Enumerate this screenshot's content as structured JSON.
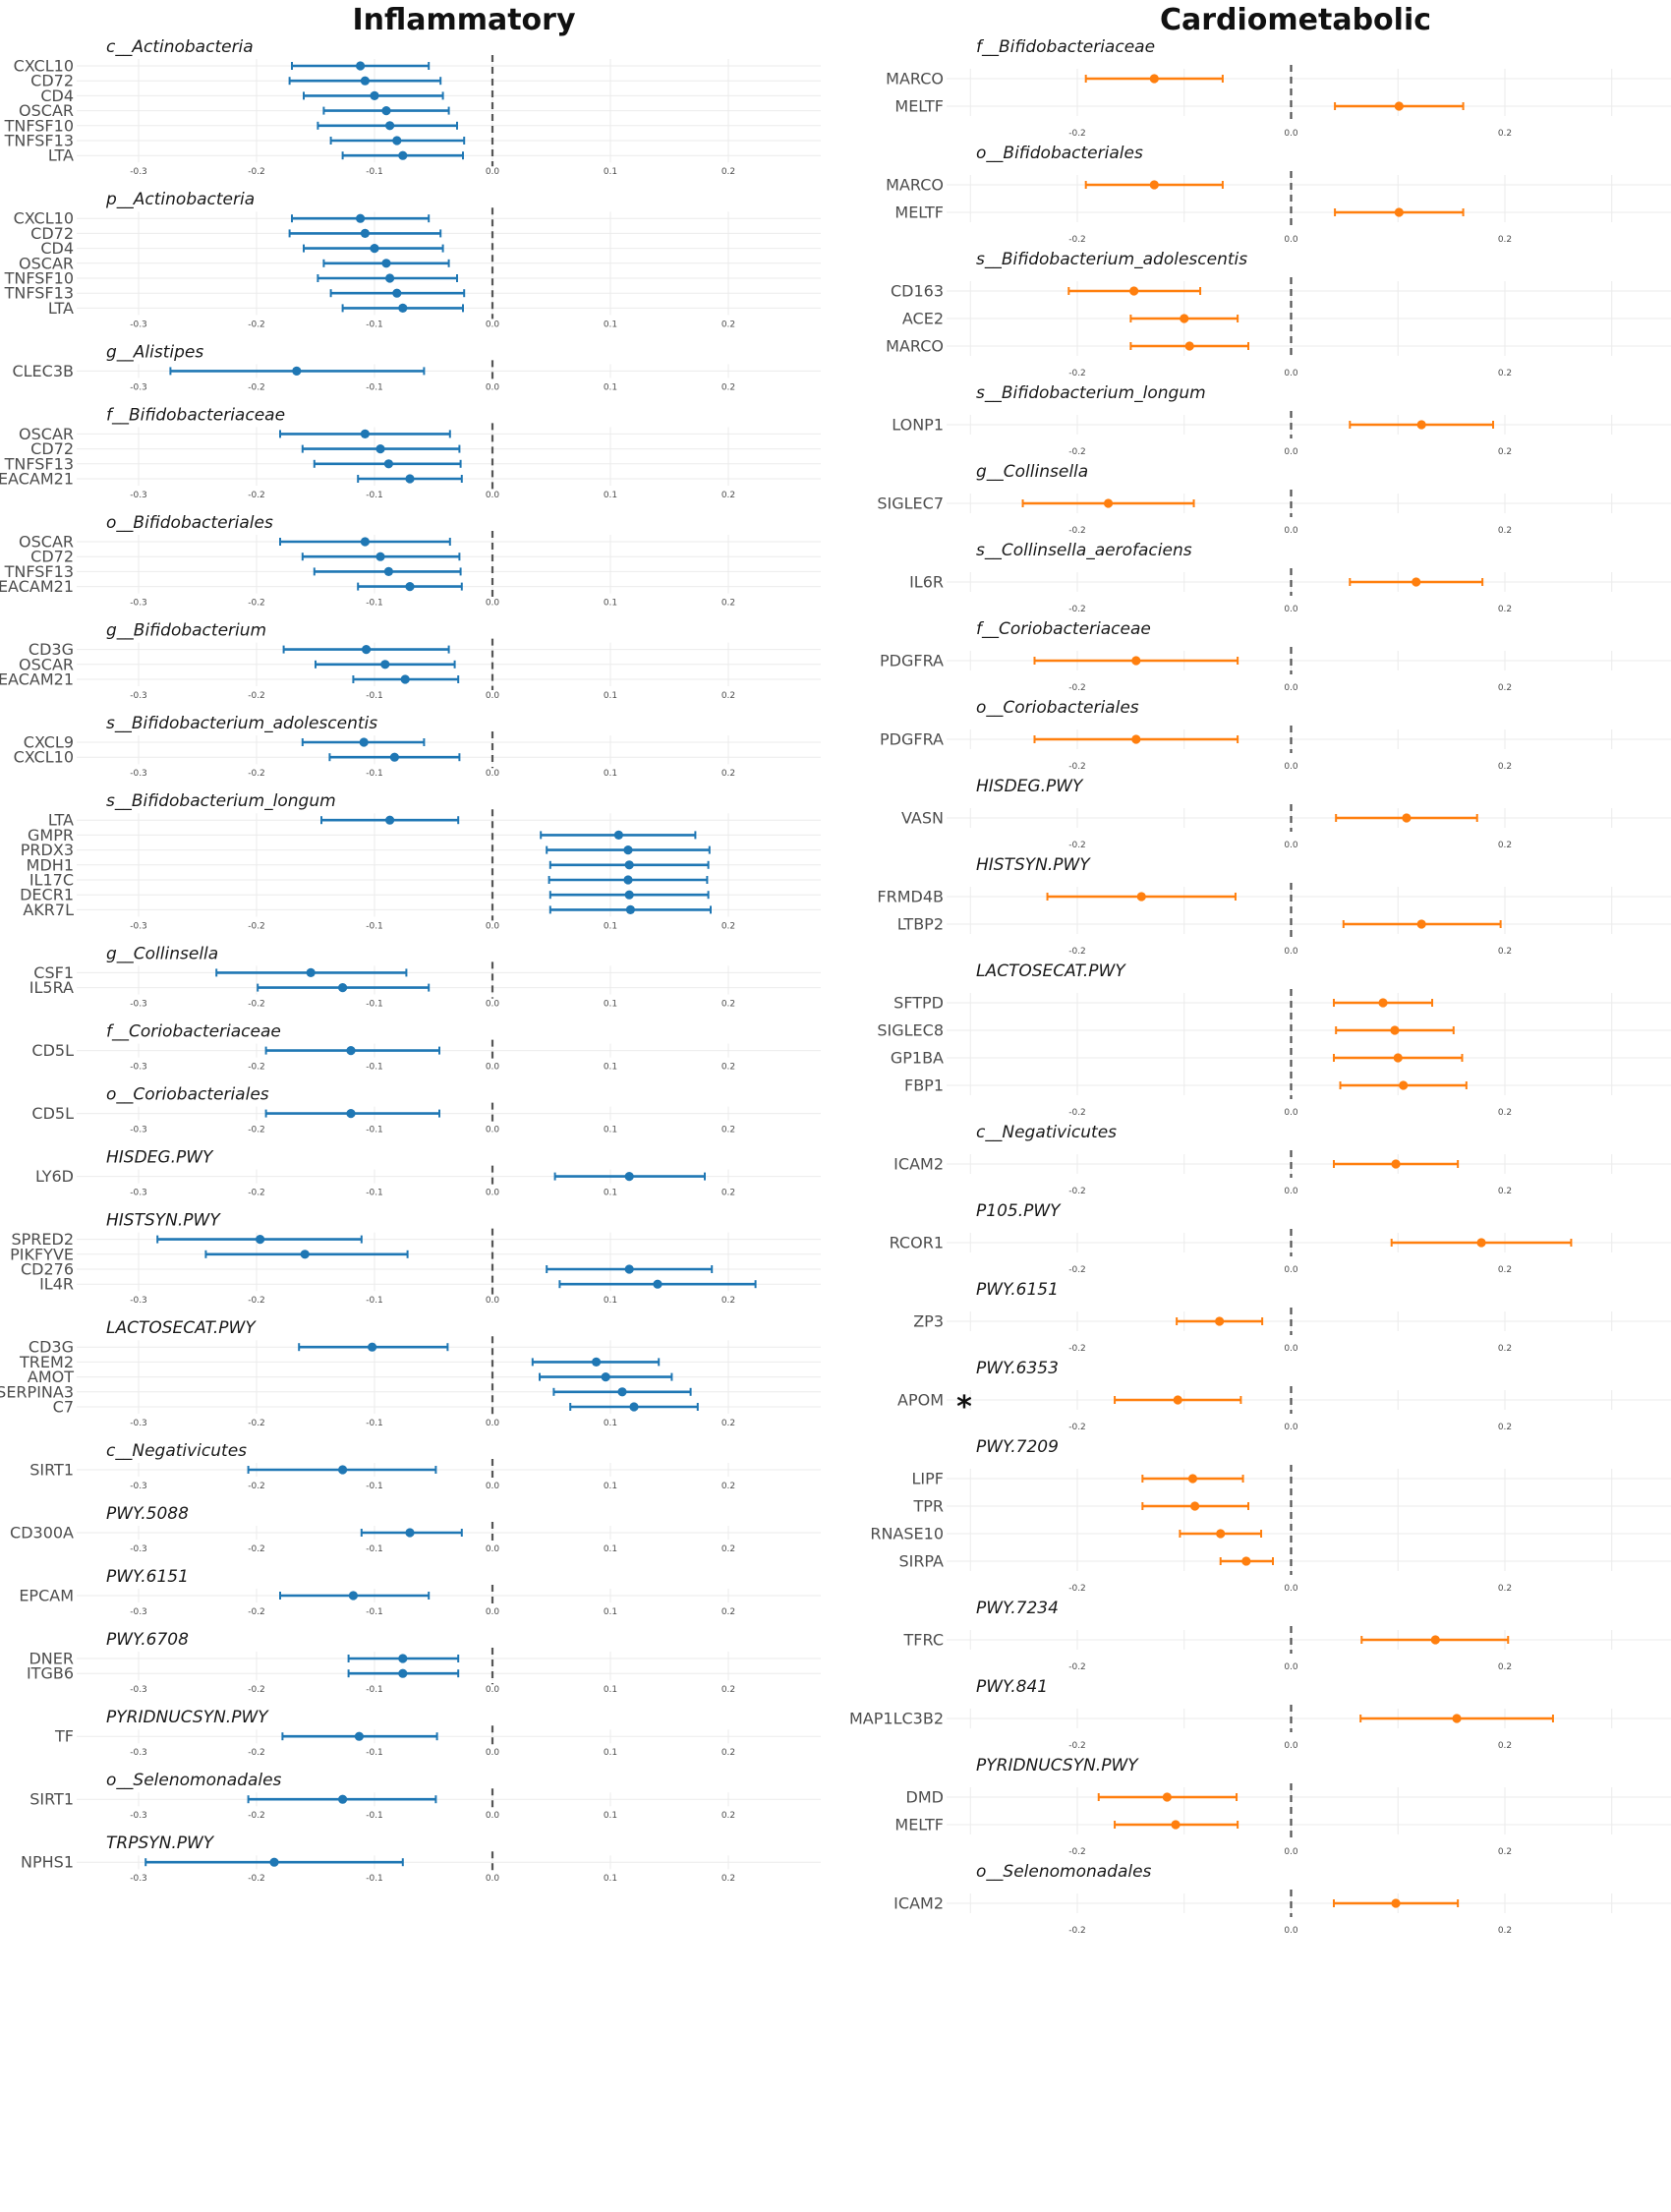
{
  "columns": [
    {
      "title": "Inflammatory",
      "color": "#1f77b4"
    },
    {
      "title": "Cardiometabolic",
      "color": "#ff7f0e"
    }
  ],
  "chart_data": [
    {
      "type": "forest",
      "column": "Inflammatory",
      "color": "#1f77b4",
      "xlim": [
        -0.3,
        0.27
      ],
      "xticks": [
        -0.3,
        -0.2,
        -0.1,
        0.0,
        0.1,
        0.2
      ],
      "xtick_labels": [
        "-0.3",
        "-0.2",
        "-0.1",
        "0.0",
        "0.1",
        "0.2"
      ],
      "reference_line": 0,
      "panels": [
        {
          "title": "c__Actinobacteria",
          "rows": [
            {
              "label": "CXCL10",
              "est": -0.112,
              "lo": -0.17,
              "hi": -0.054
            },
            {
              "label": "CD72",
              "est": -0.108,
              "lo": -0.172,
              "hi": -0.044
            },
            {
              "label": "CD4",
              "est": -0.1,
              "lo": -0.16,
              "hi": -0.042
            },
            {
              "label": "OSCAR",
              "est": -0.09,
              "lo": -0.143,
              "hi": -0.037
            },
            {
              "label": "TNFSF10",
              "est": -0.087,
              "lo": -0.148,
              "hi": -0.03
            },
            {
              "label": "TNFSF13",
              "est": -0.081,
              "lo": -0.137,
              "hi": -0.024
            },
            {
              "label": "LTA",
              "est": -0.076,
              "lo": -0.127,
              "hi": -0.025
            }
          ]
        },
        {
          "title": "p__Actinobacteria",
          "rows": [
            {
              "label": "CXCL10",
              "est": -0.112,
              "lo": -0.17,
              "hi": -0.054
            },
            {
              "label": "CD72",
              "est": -0.108,
              "lo": -0.172,
              "hi": -0.044
            },
            {
              "label": "CD4",
              "est": -0.1,
              "lo": -0.16,
              "hi": -0.042
            },
            {
              "label": "OSCAR",
              "est": -0.09,
              "lo": -0.143,
              "hi": -0.037
            },
            {
              "label": "TNFSF10",
              "est": -0.087,
              "lo": -0.148,
              "hi": -0.03
            },
            {
              "label": "TNFSF13",
              "est": -0.081,
              "lo": -0.137,
              "hi": -0.024
            },
            {
              "label": "LTA",
              "est": -0.076,
              "lo": -0.127,
              "hi": -0.025
            }
          ]
        },
        {
          "title": "g__Alistipes",
          "rows": [
            {
              "label": "CLEC3B",
              "est": -0.166,
              "lo": -0.273,
              "hi": -0.058
            }
          ]
        },
        {
          "title": "f__Bifidobacteriaceae",
          "rows": [
            {
              "label": "OSCAR",
              "est": -0.108,
              "lo": -0.18,
              "hi": -0.036
            },
            {
              "label": "CD72",
              "est": -0.095,
              "lo": -0.161,
              "hi": -0.028
            },
            {
              "label": "TNFSF13",
              "est": -0.088,
              "lo": -0.151,
              "hi": -0.027
            },
            {
              "label": "CEACAM21",
              "est": -0.07,
              "lo": -0.114,
              "hi": -0.026
            }
          ]
        },
        {
          "title": "o__Bifidobacteriales",
          "rows": [
            {
              "label": "OSCAR",
              "est": -0.108,
              "lo": -0.18,
              "hi": -0.036
            },
            {
              "label": "CD72",
              "est": -0.095,
              "lo": -0.161,
              "hi": -0.028
            },
            {
              "label": "TNFSF13",
              "est": -0.088,
              "lo": -0.151,
              "hi": -0.027
            },
            {
              "label": "CEACAM21",
              "est": -0.07,
              "lo": -0.114,
              "hi": -0.026
            }
          ]
        },
        {
          "title": "g__Bifidobacterium",
          "rows": [
            {
              "label": "CD3G",
              "est": -0.107,
              "lo": -0.177,
              "hi": -0.037
            },
            {
              "label": "OSCAR",
              "est": -0.091,
              "lo": -0.15,
              "hi": -0.032
            },
            {
              "label": "CEACAM21",
              "est": -0.074,
              "lo": -0.118,
              "hi": -0.029
            }
          ]
        },
        {
          "title": "s__Bifidobacterium_adolescentis",
          "rows": [
            {
              "label": "CXCL9",
              "est": -0.109,
              "lo": -0.161,
              "hi": -0.058
            },
            {
              "label": "CXCL10",
              "est": -0.083,
              "lo": -0.138,
              "hi": -0.028
            }
          ]
        },
        {
          "title": "s__Bifidobacterium_longum",
          "rows": [
            {
              "label": "LTA",
              "est": -0.087,
              "lo": -0.145,
              "hi": -0.029
            },
            {
              "label": "GMPR",
              "est": 0.107,
              "lo": 0.041,
              "hi": 0.172
            },
            {
              "label": "PRDX3",
              "est": 0.115,
              "lo": 0.046,
              "hi": 0.184
            },
            {
              "label": "MDH1",
              "est": 0.116,
              "lo": 0.049,
              "hi": 0.183
            },
            {
              "label": "IL17C",
              "est": 0.115,
              "lo": 0.048,
              "hi": 0.182
            },
            {
              "label": "DECR1",
              "est": 0.116,
              "lo": 0.049,
              "hi": 0.183
            },
            {
              "label": "AKR7L",
              "est": 0.117,
              "lo": 0.049,
              "hi": 0.185
            }
          ]
        },
        {
          "title": "g__Collinsella",
          "rows": [
            {
              "label": "CSF1",
              "est": -0.154,
              "lo": -0.234,
              "hi": -0.073
            },
            {
              "label": "IL5RA",
              "est": -0.127,
              "lo": -0.199,
              "hi": -0.054
            }
          ]
        },
        {
          "title": "f__Coriobacteriaceae",
          "rows": [
            {
              "label": "CD5L",
              "est": -0.12,
              "lo": -0.192,
              "hi": -0.045
            }
          ]
        },
        {
          "title": "o__Coriobacteriales",
          "rows": [
            {
              "label": "CD5L",
              "est": -0.12,
              "lo": -0.192,
              "hi": -0.045
            }
          ]
        },
        {
          "title": "HISDEG.PWY",
          "rows": [
            {
              "label": "LY6D",
              "est": 0.116,
              "lo": 0.053,
              "hi": 0.18
            }
          ]
        },
        {
          "title": "HISTSYN.PWY",
          "rows": [
            {
              "label": "SPRED2",
              "est": -0.197,
              "lo": -0.284,
              "hi": -0.111
            },
            {
              "label": "PIKFYVE",
              "est": -0.159,
              "lo": -0.243,
              "hi": -0.072
            },
            {
              "label": "CD276",
              "est": 0.116,
              "lo": 0.046,
              "hi": 0.186
            },
            {
              "label": "IL4R",
              "est": 0.14,
              "lo": 0.057,
              "hi": 0.223
            }
          ]
        },
        {
          "title": "LACTOSECAT.PWY",
          "rows": [
            {
              "label": "CD3G",
              "est": -0.102,
              "lo": -0.164,
              "hi": -0.038
            },
            {
              "label": "TREM2",
              "est": 0.088,
              "lo": 0.034,
              "hi": 0.141
            },
            {
              "label": "AMOT",
              "est": 0.096,
              "lo": 0.04,
              "hi": 0.152
            },
            {
              "label": "SERPINA3",
              "est": 0.11,
              "lo": 0.052,
              "hi": 0.168
            },
            {
              "label": "C7",
              "est": 0.12,
              "lo": 0.066,
              "hi": 0.174
            }
          ]
        },
        {
          "title": "c__Negativicutes",
          "rows": [
            {
              "label": "SIRT1",
              "est": -0.127,
              "lo": -0.207,
              "hi": -0.048
            }
          ]
        },
        {
          "title": "PWY.5088",
          "rows": [
            {
              "label": "CD300A",
              "est": -0.07,
              "lo": -0.111,
              "hi": -0.026
            }
          ]
        },
        {
          "title": "PWY.6151",
          "rows": [
            {
              "label": "EPCAM",
              "est": -0.118,
              "lo": -0.18,
              "hi": -0.054
            }
          ]
        },
        {
          "title": "PWY.6708",
          "rows": [
            {
              "label": "DNER",
              "est": -0.076,
              "lo": -0.122,
              "hi": -0.029
            },
            {
              "label": "ITGB6",
              "est": -0.076,
              "lo": -0.122,
              "hi": -0.029
            }
          ]
        },
        {
          "title": "PYRIDNUCSYN.PWY",
          "rows": [
            {
              "label": "TF",
              "est": -0.113,
              "lo": -0.178,
              "hi": -0.047
            }
          ]
        },
        {
          "title": "o__Selenomonadales",
          "rows": [
            {
              "label": "SIRT1",
              "est": -0.127,
              "lo": -0.207,
              "hi": -0.048
            }
          ]
        },
        {
          "title": "TRPSYN.PWY",
          "rows": [
            {
              "label": "NPHS1",
              "est": -0.185,
              "lo": -0.294,
              "hi": -0.076
            }
          ]
        }
      ]
    },
    {
      "type": "forest",
      "column": "Cardiometabolic",
      "color": "#ff7f0e",
      "xlim": [
        -0.33,
        0.31
      ],
      "xticks": [
        -0.2,
        0.0,
        0.2
      ],
      "xtick_labels": [
        "-0.2",
        "0.0",
        "0.2"
      ],
      "minor_gridlines": [
        -0.3,
        -0.1,
        0.1,
        0.3
      ],
      "reference_line": 0,
      "panels": [
        {
          "title": "f__Bifidobacteriaceae",
          "rows": [
            {
              "label": "MARCO",
              "est": -0.128,
              "lo": -0.192,
              "hi": -0.064
            },
            {
              "label": "MELTF",
              "est": 0.101,
              "lo": 0.041,
              "hi": 0.161
            }
          ]
        },
        {
          "title": "o__Bifidobacteriales",
          "rows": [
            {
              "label": "MARCO",
              "est": -0.128,
              "lo": -0.192,
              "hi": -0.064
            },
            {
              "label": "MELTF",
              "est": 0.101,
              "lo": 0.041,
              "hi": 0.161
            }
          ]
        },
        {
          "title": "s__Bifidobacterium_adolescentis",
          "rows": [
            {
              "label": "CD163",
              "est": -0.147,
              "lo": -0.208,
              "hi": -0.085
            },
            {
              "label": "ACE2",
              "est": -0.1,
              "lo": -0.15,
              "hi": -0.05
            },
            {
              "label": "MARCO",
              "est": -0.095,
              "lo": -0.15,
              "hi": -0.04
            }
          ]
        },
        {
          "title": "s__Bifidobacterium_longum",
          "rows": [
            {
              "label": "LONP1",
              "est": 0.122,
              "lo": 0.055,
              "hi": 0.189
            }
          ]
        },
        {
          "title": "g__Collinsella",
          "rows": [
            {
              "label": "SIGLEC7",
              "est": -0.171,
              "lo": -0.251,
              "hi": -0.091
            }
          ]
        },
        {
          "title": "s__Collinsella_aerofaciens",
          "rows": [
            {
              "label": "IL6R",
              "est": 0.117,
              "lo": 0.055,
              "hi": 0.179
            }
          ]
        },
        {
          "title": "f__Coriobacteriaceae",
          "rows": [
            {
              "label": "PDGFRA",
              "est": -0.145,
              "lo": -0.24,
              "hi": -0.05
            }
          ]
        },
        {
          "title": "o__Coriobacteriales",
          "rows": [
            {
              "label": "PDGFRA",
              "est": -0.145,
              "lo": -0.24,
              "hi": -0.05
            }
          ]
        },
        {
          "title": "HISDEG.PWY",
          "rows": [
            {
              "label": "VASN",
              "est": 0.108,
              "lo": 0.042,
              "hi": 0.174
            }
          ]
        },
        {
          "title": "HISTSYN.PWY",
          "rows": [
            {
              "label": "FRMD4B",
              "est": -0.14,
              "lo": -0.228,
              "hi": -0.052
            },
            {
              "label": "LTBP2",
              "est": 0.122,
              "lo": 0.049,
              "hi": 0.196
            }
          ]
        },
        {
          "title": "LACTOSECAT.PWY",
          "rows": [
            {
              "label": "SFTPD",
              "est": 0.086,
              "lo": 0.04,
              "hi": 0.132
            },
            {
              "label": "SIGLEC8",
              "est": 0.097,
              "lo": 0.042,
              "hi": 0.152
            },
            {
              "label": "GP1BA",
              "est": 0.1,
              "lo": 0.04,
              "hi": 0.16
            },
            {
              "label": "FBP1",
              "est": 0.105,
              "lo": 0.046,
              "hi": 0.164
            }
          ]
        },
        {
          "title": "c__Negativicutes",
          "rows": [
            {
              "label": "ICAM2",
              "est": 0.098,
              "lo": 0.04,
              "hi": 0.156
            }
          ]
        },
        {
          "title": "P105.PWY",
          "rows": [
            {
              "label": "RCOR1",
              "est": 0.178,
              "lo": 0.094,
              "hi": 0.262
            }
          ]
        },
        {
          "title": "PWY.6151",
          "rows": [
            {
              "label": "ZP3",
              "est": -0.067,
              "lo": -0.107,
              "hi": -0.027
            }
          ]
        },
        {
          "title": "PWY.6353",
          "rows": [
            {
              "label": "APOM",
              "est": -0.106,
              "lo": -0.165,
              "hi": -0.047
            }
          ],
          "annotation": "*"
        },
        {
          "title": "PWY.7209",
          "rows": [
            {
              "label": "LIPF",
              "est": -0.092,
              "lo": -0.139,
              "hi": -0.045
            },
            {
              "label": "TPR",
              "est": -0.09,
              "lo": -0.139,
              "hi": -0.04
            },
            {
              "label": "RNASE10",
              "est": -0.066,
              "lo": -0.104,
              "hi": -0.028
            },
            {
              "label": "SIRPA",
              "est": -0.042,
              "lo": -0.066,
              "hi": -0.017
            }
          ]
        },
        {
          "title": "PWY.7234",
          "rows": [
            {
              "label": "TFRC",
              "est": 0.135,
              "lo": 0.066,
              "hi": 0.203
            }
          ]
        },
        {
          "title": "PWY.841",
          "rows": [
            {
              "label": "MAP1LC3B2",
              "est": 0.155,
              "lo": 0.065,
              "hi": 0.245
            }
          ]
        },
        {
          "title": "PYRIDNUCSYN.PWY",
          "rows": [
            {
              "label": "DMD",
              "est": -0.116,
              "lo": -0.18,
              "hi": -0.051
            },
            {
              "label": "MELTF",
              "est": -0.108,
              "lo": -0.165,
              "hi": -0.05
            }
          ]
        },
        {
          "title": "o__Selenomonadales",
          "rows": [
            {
              "label": "ICAM2",
              "est": 0.098,
              "lo": 0.04,
              "hi": 0.156
            }
          ]
        }
      ]
    }
  ]
}
